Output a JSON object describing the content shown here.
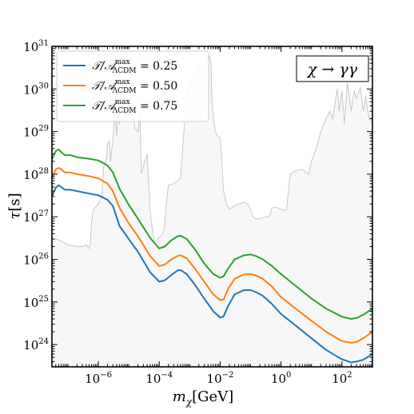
{
  "chart_data": {
    "type": "line",
    "title": "",
    "xlabel": {
      "var": "m",
      "sub": "χ",
      "unit": "[GeV]"
    },
    "ylabel": {
      "var": "τ",
      "unit": "[s]"
    },
    "x_scale": "log",
    "y_scale": "log",
    "xlim": [
      3e-08,
      1000
    ],
    "ylim": [
      3e+23,
      1e+31
    ],
    "x_ticks": [
      {
        "value": 1e-06,
        "base": "10",
        "exp": "−6"
      },
      {
        "value": 0.0001,
        "base": "10",
        "exp": "−4"
      },
      {
        "value": 0.01,
        "base": "10",
        "exp": "−2"
      },
      {
        "value": 1,
        "base": "10",
        "exp": "0"
      },
      {
        "value": 100,
        "base": "10",
        "exp": "2"
      }
    ],
    "y_ticks": [
      {
        "value": 1e+24,
        "base": "10",
        "exp": "24"
      },
      {
        "value": 1e+25,
        "base": "10",
        "exp": "25"
      },
      {
        "value": 1e+26,
        "base": "10",
        "exp": "26"
      },
      {
        "value": 1e+27,
        "base": "10",
        "exp": "27"
      },
      {
        "value": 1e+28,
        "base": "10",
        "exp": "28"
      },
      {
        "value": 1e+29,
        "base": "10",
        "exp": "29"
      },
      {
        "value": 1e+30,
        "base": "10",
        "exp": "30"
      },
      {
        "value": 1e+31,
        "base": "10",
        "exp": "31"
      }
    ],
    "grid": false,
    "legend": {
      "placement": "top-left"
    },
    "annotation": {
      "text": "χ → γγ",
      "placement": "top-right"
    },
    "series": [
      {
        "name": "T/A_ΛCDM^max = 0.25",
        "label": {
          "base": "𝒯/𝒜",
          "sup": "max",
          "sub": "ΛCDM",
          "value": " = 0.25"
        },
        "color": "#1f77b4",
        "x": [
          3e-08,
          4e-08,
          5e-08,
          6e-08,
          8e-08,
          1.2e-07,
          2e-07,
          5e-07,
          1e-06,
          2e-06,
          3e-06,
          5e-06,
          1e-05,
          2e-05,
          5e-05,
          0.0001,
          0.00015,
          0.00025,
          0.0004,
          0.0005,
          0.0008,
          0.0015,
          0.003,
          0.006,
          0.01,
          0.013,
          0.018,
          0.03,
          0.06,
          0.1,
          0.15,
          0.25,
          0.5,
          1,
          3,
          10,
          30,
          100,
          200,
          300,
          500,
          1000
        ],
        "y": [
          3e+27,
          4.8e+27,
          5.5e+27,
          5e+27,
          4.3e+27,
          4.3e+27,
          4e+27,
          3.5e+27,
          3.2e+27,
          2.5e+27,
          1.8e+27,
          6e+26,
          3e+26,
          1.5e+26,
          5e+25,
          3e+25,
          3.2e+25,
          4.3e+25,
          5.5e+25,
          5.6e+25,
          4.5e+25,
          2.5e+25,
          1.2e+25,
          6e+24,
          4.3e+24,
          4.6e+24,
          8e+24,
          1.5e+25,
          1.9e+25,
          1.9e+25,
          1.7e+25,
          1.4e+25,
          9e+24,
          5.2e+24,
          2.8e+24,
          1.4e+24,
          7.5e+23,
          4.5e+23,
          3.8e+23,
          4e+23,
          4.4e+23,
          6e+23
        ]
      },
      {
        "name": "T/A_ΛCDM^max = 0.50",
        "label": {
          "base": "𝒯/𝒜",
          "sup": "max",
          "sub": "ΛCDM",
          "value": " = 0.50"
        },
        "color": "#ff7f0e",
        "x": [
          3e-08,
          4e-08,
          5e-08,
          6e-08,
          8e-08,
          1.2e-07,
          2e-07,
          5e-07,
          1e-06,
          2e-06,
          3e-06,
          5e-06,
          1e-05,
          2e-05,
          5e-05,
          0.0001,
          0.00015,
          0.00025,
          0.0004,
          0.0005,
          0.0008,
          0.0015,
          0.003,
          0.006,
          0.01,
          0.013,
          0.018,
          0.03,
          0.06,
          0.1,
          0.15,
          0.25,
          0.5,
          1,
          3,
          10,
          30,
          100,
          200,
          300,
          500,
          1000
        ],
        "y": [
          8e+27,
          1.3e+28,
          1.4e+28,
          1.3e+28,
          1.1e+28,
          1.1e+28,
          1e+28,
          9e+27,
          8e+27,
          6e+27,
          4e+27,
          1.6e+27,
          7e+26,
          3.5e+26,
          1.2e+26,
          7e+25,
          7.5e+25,
          1e+26,
          1.2e+26,
          1.25e+26,
          1.05e+26,
          6e+25,
          3e+25,
          1.5e+25,
          1.1e+25,
          1.15e+25,
          2e+25,
          3.5e+25,
          4.4e+25,
          4.5e+25,
          4.2e+25,
          3.5e+25,
          2.3e+25,
          1.3e+25,
          7e+24,
          3.6e+24,
          2e+24,
          1.2e+24,
          1.1e+24,
          1.15e+24,
          1.4e+24,
          2e+24
        ]
      },
      {
        "name": "T/A_ΛCDM^max = 0.75",
        "label": {
          "base": "𝒯/𝒜",
          "sup": "max",
          "sub": "ΛCDM",
          "value": " = 0.75"
        },
        "color": "#2ca02c",
        "x": [
          3e-08,
          4e-08,
          5e-08,
          6e-08,
          8e-08,
          1.2e-07,
          2e-07,
          5e-07,
          1e-06,
          2e-06,
          3e-06,
          5e-06,
          1e-05,
          2e-05,
          5e-05,
          0.0001,
          0.00015,
          0.00025,
          0.0004,
          0.0005,
          0.0008,
          0.0015,
          0.003,
          0.006,
          0.01,
          0.013,
          0.018,
          0.03,
          0.06,
          0.1,
          0.15,
          0.25,
          0.5,
          1,
          3,
          10,
          30,
          100,
          200,
          300,
          500,
          1000
        ],
        "y": [
          2.2e+28,
          3.5e+28,
          3.8e+28,
          3.3e+28,
          2.8e+28,
          2.8e+28,
          2.5e+28,
          2.3e+28,
          2.1e+28,
          1.6e+28,
          1.1e+28,
          4.5e+27,
          1.9e+27,
          9e+26,
          3.2e+26,
          1.8e+26,
          2e+26,
          2.8e+26,
          3.5e+26,
          3.6e+26,
          3e+26,
          1.7e+26,
          8e+25,
          4.5e+25,
          3.7e+25,
          4e+25,
          6e+25,
          1e+26,
          1.25e+26,
          1.3e+26,
          1.2e+26,
          1e+26,
          7e+25,
          4.5e+25,
          2.4e+25,
          1.2e+25,
          7e+24,
          4.5e+24,
          4e+24,
          4.2e+24,
          5e+24,
          7e+24
        ]
      }
    ],
    "exclusion_region": {
      "fill": "#f7f7f7",
      "edge": "#c8c8c8",
      "x": [
        3e-08,
        4e-08,
        6e-08,
        1e-07,
        2e-07,
        3e-07,
        4e-07,
        5e-07,
        5.5e-07,
        6e-07,
        7e-07,
        1e-06,
        1.3e-06,
        1.4e-06,
        1.5e-06,
        1.8e-06,
        2e-06,
        2.3e-06,
        2.5e-06,
        3e-06,
        3.5e-06,
        4e-06,
        4.5e-06,
        5e-06,
        6e-06,
        8e-06,
        1e-05,
        1.3e-05,
        1.6e-05,
        2e-05,
        2.3e-05,
        2.6e-05,
        3e-05,
        4e-05,
        5e-05,
        6e-05,
        7e-05,
        9e-05,
        0.00011,
        0.00013,
        0.00015,
        0.00017,
        0.0002,
        0.0003,
        0.0005,
        0.0008,
        0.001,
        0.0015,
        0.002,
        0.003,
        0.004,
        0.0045,
        0.005,
        0.0053,
        0.006,
        0.007,
        0.008,
        0.01,
        0.011,
        0.013,
        0.016,
        0.02,
        0.03,
        0.04,
        0.06,
        0.08,
        0.1,
        0.12,
        0.15,
        0.2,
        0.3,
        0.4,
        0.45,
        0.5,
        0.6,
        0.8,
        1,
        1.5,
        2,
        3,
        5,
        8,
        10,
        15,
        20,
        30,
        40,
        50,
        60,
        70,
        80,
        100,
        120,
        150,
        200,
        250,
        300,
        400,
        500,
        600,
        700,
        800,
        1000
      ],
      "y": [
        3e+26,
        3e+26,
        2.7e+26,
        2.2e+26,
        2e+26,
        2e+26,
        2.2e+26,
        1.8e+26,
        2.5e+26,
        8e+26,
        1.5e+27,
        2e+27,
        3e+27,
        7e+27,
        1.5e+28,
        2e+28,
        5e+28,
        6e+28,
        2e+28,
        6e+28,
        3e+29,
        8e+28,
        4e+29,
        1.5e+29,
        5e+29,
        2e+29,
        3e+29,
        4e+29,
        1.2e+29,
        1e+29,
        3e+29,
        1e+28,
        1.5e+28,
        3e+28,
        1.4e+27,
        5e+26,
        2.5e+26,
        3e+26,
        3.5e+26,
        4e+26,
        6e+26,
        2e+27,
        5.5e+27,
        6e+27,
        8e+27,
        8.5e+29,
        1.4e+30,
        2.2e+30,
        3.5e+30,
        3.7e+30,
        4.5e+30,
        6e+30,
        4e+30,
        6e+29,
        2e+29,
        1e+29,
        8e+28,
        7e+28,
        2.7e+28,
        4e+27,
        2e+27,
        1.5e+27,
        1.8e+27,
        2e+27,
        2.2e+27,
        2e+27,
        1.5e+27,
        1e+27,
        9e+26,
        9e+26,
        1e+27,
        1e+27,
        1.2e+27,
        1.6e+27,
        1.7e+27,
        1.6e+27,
        1.5e+27,
        1.4e+27,
        1e+28,
        1.2e+28,
        1.3e+28,
        1e+28,
        2e+28,
        4.5e+28,
        1e+29,
        2e+29,
        3e+29,
        2e+29,
        5e+29,
        1e+30,
        3e+29,
        9e+29,
        1.5e+29,
        1.4e+30,
        3e+29,
        9e+29,
        6e+29,
        1.1e+30,
        3e+29,
        7e+29,
        3e+29,
        2e+29,
        1.5e+29
      ]
    }
  }
}
